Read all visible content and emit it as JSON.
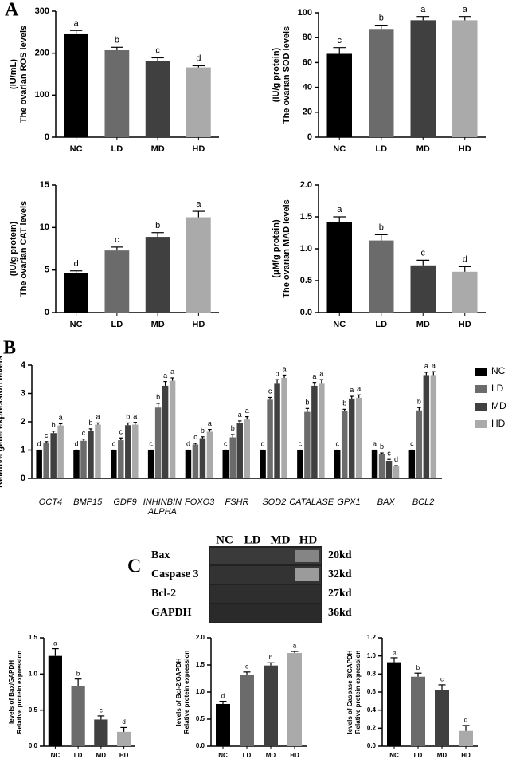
{
  "panel_labels": [
    "A",
    "B",
    "C"
  ],
  "chart_data": [
    {
      "type": "bar",
      "ylabel": [
        "The ovarian ROS levels",
        "(IU/mL)"
      ],
      "categories": [
        "NC",
        "LD",
        "MD",
        "HD"
      ],
      "values": [
        245,
        207,
        182,
        166
      ],
      "errors": [
        9,
        7,
        7,
        4
      ],
      "letters": [
        "a",
        "b",
        "c",
        "d"
      ],
      "colors": [
        "#000000",
        "#6b6b6b",
        "#404040",
        "#aaaaaa"
      ],
      "ylim": [
        0,
        300
      ],
      "yticks": [
        0,
        100,
        200,
        300
      ]
    },
    {
      "type": "bar",
      "ylabel": [
        "The ovarian SOD levels",
        "(IU/g protein)"
      ],
      "categories": [
        "NC",
        "LD",
        "MD",
        "HD"
      ],
      "values": [
        67,
        87,
        94,
        94
      ],
      "errors": [
        5,
        3,
        3,
        3
      ],
      "letters": [
        "c",
        "b",
        "a",
        "a"
      ],
      "colors": [
        "#000000",
        "#6b6b6b",
        "#404040",
        "#aaaaaa"
      ],
      "ylim": [
        0,
        100
      ],
      "yticks": [
        0,
        20,
        40,
        60,
        80,
        100
      ]
    },
    {
      "type": "bar",
      "ylabel": [
        "The ovarian CAT levels",
        "(IU/g protein)"
      ],
      "categories": [
        "NC",
        "LD",
        "MD",
        "HD"
      ],
      "values": [
        4.6,
        7.3,
        8.9,
        11.2
      ],
      "errors": [
        0.3,
        0.4,
        0.5,
        0.7
      ],
      "letters": [
        "d",
        "c",
        "b",
        "a"
      ],
      "colors": [
        "#000000",
        "#6b6b6b",
        "#404040",
        "#aaaaaa"
      ],
      "ylim": [
        0,
        15
      ],
      "yticks": [
        0,
        5,
        10,
        15
      ]
    },
    {
      "type": "bar",
      "ylabel": [
        "The ovarian MAD levels",
        "(μM/g protein)"
      ],
      "categories": [
        "NC",
        "LD",
        "MD",
        "HD"
      ],
      "values": [
        1.42,
        1.13,
        0.74,
        0.64
      ],
      "errors": [
        0.08,
        0.09,
        0.08,
        0.08
      ],
      "letters": [
        "a",
        "b",
        "c",
        "d"
      ],
      "colors": [
        "#000000",
        "#6b6b6b",
        "#404040",
        "#aaaaaa"
      ],
      "ylim": [
        0,
        2
      ],
      "yticks": [
        {
          "value": 0,
          "label": "0.0"
        },
        0.5,
        {
          "value": 1,
          "label": "1.0"
        },
        1.5,
        {
          "value": 2,
          "label": "2.0"
        }
      ]
    },
    {
      "type": "grouped_bar",
      "ylabel": [
        "Relative gene expression levels"
      ],
      "categories": [
        "OCT4",
        "BMP15",
        "GDF9",
        "INHINBIN ALPHA",
        "FOXO3",
        "FSHR",
        "SOD2",
        "CATALASE",
        "GPX1",
        "BAX",
        "BCL2"
      ],
      "legend": "right",
      "ylim": [
        0,
        4
      ],
      "yticks": [
        0,
        1,
        2,
        3,
        4
      ],
      "series": [
        {
          "name": "NC",
          "color": "#000000",
          "values": [
            1,
            1,
            1,
            1,
            1,
            1,
            1,
            1,
            1,
            1,
            1
          ],
          "errors": [
            0,
            0,
            0,
            0,
            0,
            0,
            0,
            0,
            0,
            0,
            0
          ],
          "letters": [
            "d",
            "d",
            "c",
            "c",
            "d",
            "c",
            "d",
            "c",
            "c",
            "a",
            "c"
          ]
        },
        {
          "name": "LD",
          "color": "#6b6b6b",
          "values": [
            1.25,
            1.33,
            1.35,
            2.5,
            1.2,
            1.45,
            2.78,
            2.35,
            2.37,
            0.85,
            2.4
          ],
          "errors": [
            0.05,
            0.06,
            0.08,
            0.15,
            0.04,
            0.1,
            0.08,
            0.12,
            0.07,
            0.05,
            0.1
          ],
          "letters": [
            "c",
            "c",
            "c",
            "b",
            "c",
            "b",
            "c",
            "b",
            "b",
            "b",
            "b"
          ]
        },
        {
          "name": "MD",
          "color": "#404040",
          "values": [
            1.6,
            1.68,
            1.88,
            3.27,
            1.42,
            1.95,
            3.37,
            3.27,
            2.82,
            0.62,
            3.65
          ],
          "errors": [
            0.07,
            0.07,
            0.08,
            0.15,
            0.05,
            0.08,
            0.12,
            0.12,
            0.08,
            0.05,
            0.1
          ],
          "letters": [
            "b",
            "b",
            "b",
            "a",
            "b",
            "a",
            "b",
            "a",
            "a",
            "c",
            "a"
          ]
        },
        {
          "name": "HD",
          "color": "#aaaaaa",
          "values": [
            1.87,
            1.9,
            1.9,
            3.45,
            1.65,
            2.08,
            3.55,
            3.37,
            2.85,
            0.42,
            3.65
          ],
          "errors": [
            0.06,
            0.06,
            0.08,
            0.1,
            0.08,
            0.1,
            0.1,
            0.12,
            0.1,
            0.03,
            0.12
          ],
          "letters": [
            "a",
            "a",
            "a",
            "a",
            "a",
            "a",
            "a",
            "a",
            "a",
            "d",
            "a"
          ]
        }
      ]
    },
    {
      "type": "bar",
      "ylabel": [
        "Relative protein expression",
        "levels of Bax/GAPDH"
      ],
      "categories": [
        "NC",
        "LD",
        "MD",
        "HD"
      ],
      "values": [
        1.25,
        0.83,
        0.37,
        0.2
      ],
      "errors": [
        0.1,
        0.1,
        0.05,
        0.06
      ],
      "letters": [
        "a",
        "b",
        "c",
        "d"
      ],
      "colors": [
        "#000000",
        "#6b6b6b",
        "#404040",
        "#aaaaaa"
      ],
      "ylim": [
        0,
        1.5
      ],
      "yticks": [
        {
          "value": 0,
          "label": "0.0"
        },
        0.5,
        {
          "value": 1,
          "label": "1.0"
        },
        1.5
      ]
    },
    {
      "type": "bar",
      "ylabel": [
        "Relative protein expression",
        "levels of Bcl-2/GAPDH"
      ],
      "categories": [
        "NC",
        "LD",
        "MD",
        "HD"
      ],
      "values": [
        0.78,
        1.32,
        1.49,
        1.72
      ],
      "errors": [
        0.05,
        0.05,
        0.05,
        0.03
      ],
      "letters": [
        "d",
        "c",
        "b",
        "a"
      ],
      "colors": [
        "#000000",
        "#6b6b6b",
        "#404040",
        "#aaaaaa"
      ],
      "ylim": [
        0,
        2
      ],
      "yticks": [
        {
          "value": 0,
          "label": "0.0"
        },
        0.5,
        {
          "value": 1,
          "label": "1.0"
        },
        1.5,
        {
          "value": 2,
          "label": "2.0"
        }
      ]
    },
    {
      "type": "bar",
      "ylabel": [
        "Relative protein expression",
        "levels of Caspase 3/GAPDH"
      ],
      "categories": [
        "NC",
        "LD",
        "MD",
        "HD"
      ],
      "values": [
        0.93,
        0.77,
        0.62,
        0.17
      ],
      "errors": [
        0.05,
        0.04,
        0.06,
        0.06
      ],
      "letters": [
        "a",
        "b",
        "c",
        "d"
      ],
      "colors": [
        "#000000",
        "#6b6b6b",
        "#404040",
        "#aaaaaa"
      ],
      "ylim": [
        0,
        1.2
      ],
      "yticks": [
        {
          "value": 0,
          "label": "0.0"
        },
        0.2,
        0.4,
        0.6,
        0.8,
        {
          "value": 1,
          "label": "1.0"
        },
        1.2
      ]
    }
  ],
  "blot": {
    "lanes": [
      "NC",
      "LD",
      "MD",
      "HD"
    ],
    "proteins": [
      "Bax",
      "Caspase 3",
      "Bcl-2",
      "GAPDH"
    ],
    "sizes": [
      "20kd",
      "32kd",
      "27kd",
      "36kd"
    ]
  }
}
